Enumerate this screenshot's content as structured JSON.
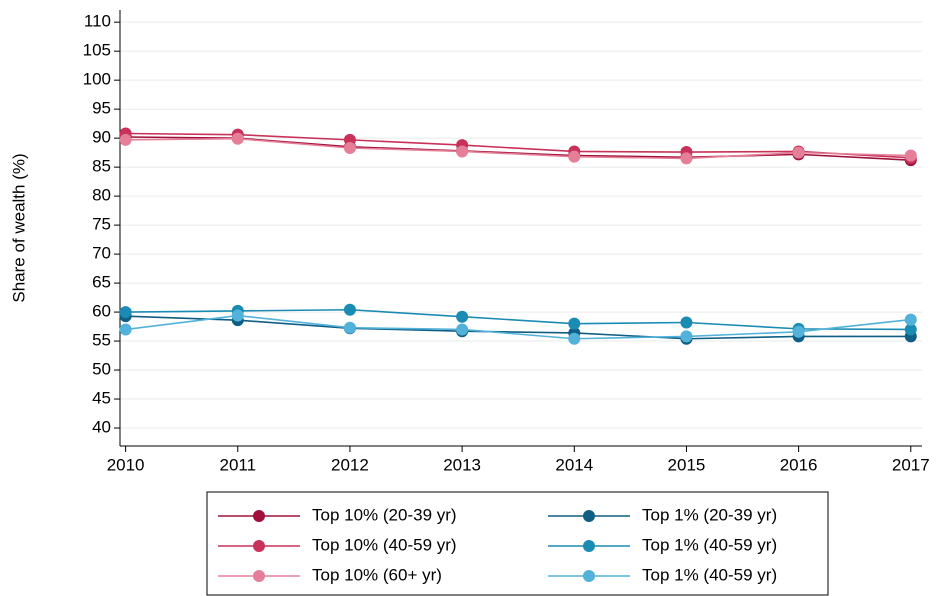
{
  "chart_data": {
    "type": "line",
    "ylabel": "Share of wealth (%)",
    "x": [
      2010,
      2011,
      2012,
      2013,
      2014,
      2015,
      2016,
      2017
    ],
    "xlim": [
      2009.95,
      2017.1
    ],
    "xticks": [
      2010,
      2011,
      2012,
      2013,
      2014,
      2015,
      2016,
      2017
    ],
    "ylim": [
      36.9,
      112.1
    ],
    "yticks": [
      40,
      45,
      50,
      55,
      60,
      65,
      70,
      75,
      80,
      85,
      90,
      95,
      100,
      105,
      110
    ],
    "grid": true,
    "series": [
      {
        "name": "Top 10% (20-39 yr)",
        "color": "#a0103a",
        "values": [
          90.2,
          90.0,
          88.5,
          87.8,
          87.0,
          86.7,
          87.2,
          86.2
        ]
      },
      {
        "name": "Top 10% (40-59 yr)",
        "color": "#c8325a",
        "values": [
          90.8,
          90.6,
          89.7,
          88.8,
          87.7,
          87.6,
          87.7,
          86.6
        ]
      },
      {
        "name": "Top 10% (60+ yr)",
        "color": "#e57f98",
        "values": [
          89.7,
          89.9,
          88.3,
          87.7,
          86.8,
          86.5,
          87.5,
          87.0
        ]
      },
      {
        "name": "Top 1% (20-39 yr)",
        "color": "#0f5e84",
        "values": [
          59.3,
          58.6,
          57.2,
          56.7,
          56.4,
          55.4,
          55.8,
          55.8
        ]
      },
      {
        "name": "Top 1% (40-59 yr)",
        "color": "#1a8cb4",
        "values": [
          60.0,
          60.2,
          60.4,
          59.2,
          58.0,
          58.2,
          57.1,
          57.0
        ]
      },
      {
        "name": "Top 1% (40-59 yr)",
        "color": "#52b2da",
        "values": [
          57.0,
          59.4,
          57.3,
          57.0,
          55.4,
          55.8,
          56.6,
          58.7
        ]
      }
    ]
  }
}
